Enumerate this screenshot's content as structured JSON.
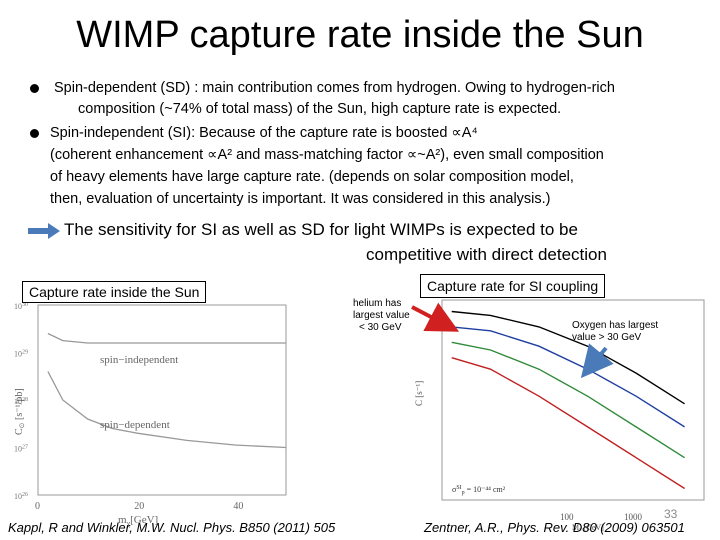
{
  "slide": {
    "title": "WIMP capture rate inside the Sun",
    "bullets": [
      {
        "line1": "Spin-dependent (SD) : main contribution comes from hydrogen. Owing to hydrogen-rich",
        "line2": "composition (~74% of total mass) of the Sun, high capture rate is expected."
      },
      {
        "line1": "Spin-independent (SI): Because of the capture rate is boosted ∝A⁴",
        "line2": "(coherent enhancement ∝A² and mass-matching factor ∝~A²), even small composition",
        "line3": "of heavy elements have large capture rate. (depends on solar composition model,",
        "line4": "then, evaluation of uncertainty is important. It was considered in this analysis.)"
      }
    ],
    "conclusion_line1": "The sensitivity for SI as well as SD for light WIMPs is expected to be",
    "conclusion_line2": "competitive with direct detection",
    "left_label": "Capture rate inside the Sun",
    "right_label": "Capture rate for SI coupling",
    "helium_note": [
      "helium has",
      "largest value",
      "< 30 GeV"
    ],
    "oxygen_note": [
      "Oxygen has largest",
      "value > 30 GeV"
    ],
    "left_citation": "Kappl, R and Winkler, M.W.  Nucl. Phys. B850 (2011) 505",
    "right_citation": "Zentner, A.R., Phys. Rev. D80 (2009) 063501",
    "page_number": "33",
    "accent_color": "#4a7ab8",
    "arrow_color": "#d02020"
  },
  "chart_data": [
    {
      "type": "line",
      "xlabel": "m_χ [GeV]",
      "ylabel": "C_⊙ [s⁻¹/pb]",
      "xlim": [
        0,
        50
      ],
      "ylim_log10": [
        26,
        30
      ],
      "x_ticks": [
        "0",
        "20",
        "40"
      ],
      "y_ticks": [
        "10^26",
        "10^27",
        "10^28",
        "10^29",
        "10^30"
      ],
      "series": [
        {
          "name": "spin-independent",
          "x": [
            2,
            5,
            10,
            20,
            30,
            40,
            50
          ],
          "log10_y": [
            29.4,
            29.25,
            29.2,
            29.2,
            29.2,
            29.2,
            29.2
          ]
        },
        {
          "name": "spin-dependent",
          "x": [
            2,
            5,
            10,
            15,
            20,
            30,
            40,
            50
          ],
          "log10_y": [
            28.6,
            28.0,
            27.6,
            27.4,
            27.3,
            27.15,
            27.05,
            27.0
          ]
        }
      ]
    },
    {
      "type": "line",
      "xlabel": "Mₓ [GeV]",
      "ylabel": "C [s⁻¹]",
      "x_ticks": [
        "100",
        "1000"
      ],
      "note": "σ_p^SI = 10⁻⁴⁴ cm²",
      "series": [
        {
          "name": "",
          "color": "#000000",
          "log10_x": [
            0.6,
            1,
            1.5,
            2,
            2.5,
            3
          ],
          "log10_y": [
            29.4,
            29.3,
            29.0,
            28.5,
            27.8,
            27.0
          ]
        },
        {
          "name": "",
          "color": "#1f3fa0",
          "log10_x": [
            0.6,
            1,
            1.5,
            2,
            2.5,
            3
          ],
          "log10_y": [
            29.0,
            28.9,
            28.5,
            27.9,
            27.2,
            26.4
          ]
        },
        {
          "name": "",
          "color": "#2f8a3a",
          "log10_x": [
            0.6,
            1,
            1.5,
            2,
            2.5,
            3
          ],
          "log10_y": [
            28.6,
            28.4,
            27.9,
            27.2,
            26.4,
            25.6
          ]
        },
        {
          "name": "",
          "color": "#c02020",
          "log10_x": [
            0.6,
            1,
            1.5,
            2,
            2.5,
            3
          ],
          "log10_y": [
            28.2,
            27.9,
            27.2,
            26.4,
            25.6,
            24.8
          ]
        }
      ]
    }
  ]
}
